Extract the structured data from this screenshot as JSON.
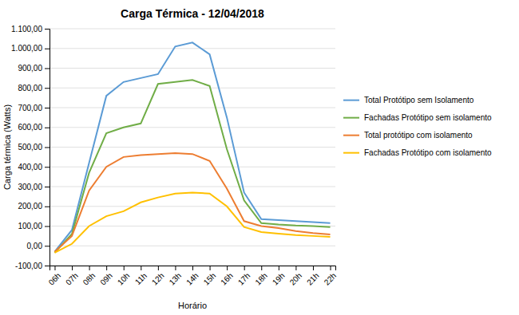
{
  "chart_data": {
    "type": "line",
    "title": "Carga Térmica - 12/04/2018",
    "x_label": "Horário",
    "y_label": "Carga térmica (Watts)",
    "categories": [
      "06h",
      "07h",
      "08h",
      "09h",
      "10h",
      "11h",
      "12h",
      "13h",
      "14h",
      "15h",
      "16h",
      "17h",
      "18h",
      "19h",
      "20h",
      "21h",
      "22h"
    ],
    "series": [
      {
        "name": "Total Protótipo sem Isolamento",
        "color": "#5B9BD5",
        "values": [
          -30,
          80,
          420,
          760,
          830,
          850,
          870,
          1010,
          1030,
          970,
          650,
          270,
          135,
          130,
          125,
          120,
          115
        ]
      },
      {
        "name": "Fachadas Protótipo sem isolamento",
        "color": "#70AD47",
        "values": [
          -35,
          60,
          370,
          570,
          600,
          620,
          820,
          830,
          840,
          810,
          490,
          230,
          115,
          108,
          103,
          100,
          95
        ]
      },
      {
        "name": "Total protótipo com isolamento",
        "color": "#ED7D31",
        "values": [
          -30,
          50,
          280,
          400,
          450,
          460,
          465,
          470,
          465,
          430,
          290,
          125,
          100,
          90,
          75,
          65,
          58
        ]
      },
      {
        "name": "Fachadas Protótipo com isolamento",
        "color": "#FFC000",
        "values": [
          -35,
          10,
          100,
          150,
          175,
          220,
          245,
          265,
          270,
          265,
          200,
          95,
          70,
          62,
          55,
          50,
          45
        ]
      }
    ],
    "ylim": [
      -100,
      1100
    ],
    "yticks": [
      {
        "value": -100,
        "label": "-100,00"
      },
      {
        "value": 0,
        "label": "0,00"
      },
      {
        "value": 100,
        "label": "100,00"
      },
      {
        "value": 200,
        "label": "200,00"
      },
      {
        "value": 300,
        "label": "300,00"
      },
      {
        "value": 400,
        "label": "400,00"
      },
      {
        "value": 500,
        "label": "500,00"
      },
      {
        "value": 600,
        "label": "600,00"
      },
      {
        "value": 700,
        "label": "700,00"
      },
      {
        "value": 800,
        "label": "800,00"
      },
      {
        "value": 900,
        "label": "900,00"
      },
      {
        "value": 1000,
        "label": "1.000,00"
      },
      {
        "value": 1100,
        "label": "1.100,00"
      }
    ],
    "grid": true,
    "legend": "right"
  }
}
